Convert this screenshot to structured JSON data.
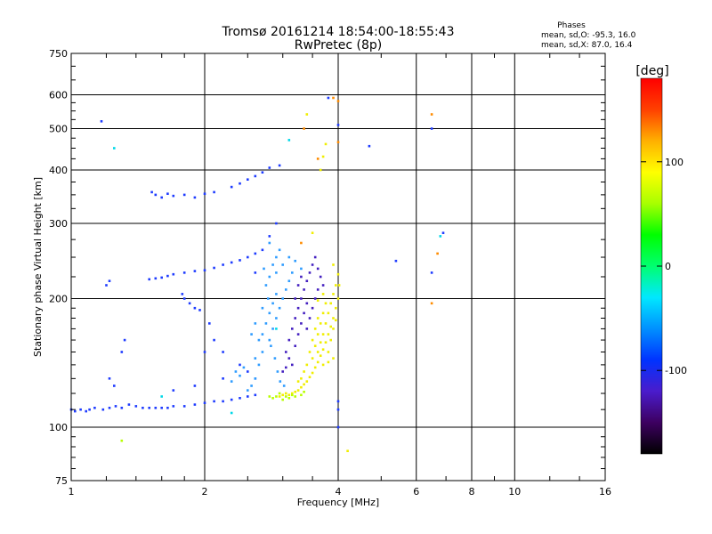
{
  "chart_data": {
    "type": "scatter",
    "title": "Tromsø 20161214 18:54:00-18:55:43",
    "subtitle": "RwPretec (8p)",
    "phases_box": {
      "heading": "Phases",
      "line_o": "mean, sd,O: -95.3, 16.0",
      "line_x": "mean, sd,X:  87.0, 16.4"
    },
    "xlabel": "Frequency [MHz]",
    "ylabel": "Stationary phase Virtual Height [km]",
    "xscale": "log",
    "yscale": "log",
    "xlim": [
      1,
      16
    ],
    "ylim": [
      75,
      750
    ],
    "x_ticks": [
      1,
      2,
      4,
      6,
      8,
      10,
      16
    ],
    "y_ticks": [
      75,
      100,
      200,
      300,
      400,
      500,
      600,
      750
    ],
    "x_grid": [
      2,
      4,
      6,
      8,
      10
    ],
    "y_grid": [
      100,
      200,
      300,
      400,
      500,
      600
    ],
    "grid": true,
    "colorbar": {
      "label": "[deg]",
      "range": [
        -180,
        180
      ],
      "ticks": [
        100,
        0,
        -100
      ],
      "colormap": [
        "#000000",
        "#3d0060",
        "#4a1ccc",
        "#0033ff",
        "#0090ff",
        "#00e8ff",
        "#00ff70",
        "#00ff00",
        "#a8ff00",
        "#ffff00",
        "#ffb000",
        "#ff4000",
        "#ff0000"
      ]
    },
    "series": [
      {
        "color": "#1f3cff",
        "points": [
          [
            1.0,
            110
          ],
          [
            1.02,
            109
          ],
          [
            1.05,
            110
          ],
          [
            1.08,
            109
          ],
          [
            1.1,
            110
          ],
          [
            1.13,
            111
          ],
          [
            1.18,
            110
          ],
          [
            1.22,
            111
          ],
          [
            1.26,
            112
          ],
          [
            1.3,
            111
          ],
          [
            1.35,
            113
          ],
          [
            1.4,
            112
          ],
          [
            1.45,
            111
          ],
          [
            1.5,
            111
          ],
          [
            1.55,
            111
          ],
          [
            1.6,
            111
          ],
          [
            1.65,
            111
          ],
          [
            1.7,
            112
          ],
          [
            1.8,
            112
          ],
          [
            1.9,
            113
          ],
          [
            2.0,
            114
          ],
          [
            2.1,
            115
          ],
          [
            2.2,
            115
          ],
          [
            2.3,
            116
          ],
          [
            2.4,
            117
          ],
          [
            2.5,
            118
          ],
          [
            2.6,
            119
          ],
          [
            1.5,
            222
          ],
          [
            1.55,
            223
          ],
          [
            1.6,
            224
          ],
          [
            1.65,
            226
          ],
          [
            1.7,
            228
          ],
          [
            1.8,
            230
          ],
          [
            1.9,
            232
          ],
          [
            2.0,
            233
          ],
          [
            2.1,
            236
          ],
          [
            2.2,
            240
          ],
          [
            2.3,
            243
          ],
          [
            2.4,
            246
          ],
          [
            2.5,
            250
          ],
          [
            2.6,
            255
          ],
          [
            2.7,
            260
          ],
          [
            1.52,
            355
          ],
          [
            1.55,
            350
          ],
          [
            1.6,
            345
          ],
          [
            1.65,
            352
          ],
          [
            1.7,
            348
          ],
          [
            1.8,
            350
          ],
          [
            1.9,
            345
          ],
          [
            2.0,
            352
          ],
          [
            2.1,
            355
          ],
          [
            2.3,
            365
          ],
          [
            2.4,
            372
          ],
          [
            2.5,
            380
          ],
          [
            2.6,
            387
          ],
          [
            2.7,
            395
          ],
          [
            2.8,
            405
          ],
          [
            2.95,
            410
          ],
          [
            1.78,
            205
          ],
          [
            1.8,
            200
          ],
          [
            1.85,
            195
          ],
          [
            1.9,
            190
          ],
          [
            1.95,
            188
          ],
          [
            1.2,
            215
          ],
          [
            1.22,
            220
          ],
          [
            1.3,
            150
          ],
          [
            1.32,
            160
          ],
          [
            1.22,
            130
          ],
          [
            1.25,
            125
          ],
          [
            1.17,
            520
          ],
          [
            3.8,
            590
          ],
          [
            4.0,
            510
          ],
          [
            6.5,
            500
          ],
          [
            6.5,
            230
          ],
          [
            2.9,
            300
          ],
          [
            2.8,
            280
          ],
          [
            2.6,
            230
          ],
          [
            2.1,
            160
          ],
          [
            2.2,
            150
          ],
          [
            2.4,
            140
          ],
          [
            2.5,
            135
          ],
          [
            2.6,
            130
          ],
          [
            2.2,
            130
          ],
          [
            2.0,
            150
          ],
          [
            4.0,
            115
          ],
          [
            4.0,
            110
          ],
          [
            4.0,
            100
          ],
          [
            4.7,
            455
          ],
          [
            5.4,
            245
          ],
          [
            6.9,
            285
          ],
          [
            2.05,
            175
          ],
          [
            1.7,
            122
          ],
          [
            1.9,
            125
          ]
        ]
      },
      {
        "color": "#2f9cff",
        "points": [
          [
            2.7,
            165
          ],
          [
            2.75,
            175
          ],
          [
            2.8,
            185
          ],
          [
            2.85,
            195
          ],
          [
            2.9,
            205
          ],
          [
            2.75,
            215
          ],
          [
            2.8,
            225
          ],
          [
            2.85,
            240
          ],
          [
            2.9,
            250
          ],
          [
            2.95,
            260
          ],
          [
            2.8,
            270
          ],
          [
            2.7,
            150
          ],
          [
            2.65,
            140
          ],
          [
            2.6,
            130
          ],
          [
            2.55,
            125
          ],
          [
            2.5,
            122
          ],
          [
            2.8,
            160
          ],
          [
            2.85,
            170
          ],
          [
            2.9,
            180
          ],
          [
            2.95,
            190
          ],
          [
            3.0,
            200
          ],
          [
            3.05,
            210
          ],
          [
            3.1,
            220
          ],
          [
            3.15,
            230
          ],
          [
            2.72,
            235
          ],
          [
            2.78,
            200
          ],
          [
            2.82,
            155
          ],
          [
            2.88,
            145
          ],
          [
            2.92,
            135
          ],
          [
            2.96,
            128
          ],
          [
            3.02,
            125
          ],
          [
            2.4,
            132
          ],
          [
            2.45,
            138
          ],
          [
            2.3,
            128
          ],
          [
            2.35,
            135
          ],
          [
            2.6,
            145
          ],
          [
            2.65,
            160
          ],
          [
            2.7,
            190
          ],
          [
            2.9,
            230
          ],
          [
            3.0,
            240
          ],
          [
            3.1,
            250
          ],
          [
            3.2,
            245
          ],
          [
            3.3,
            235
          ],
          [
            2.55,
            165
          ],
          [
            2.6,
            175
          ]
        ]
      },
      {
        "color": "#4420c0",
        "points": [
          [
            3.05,
            150
          ],
          [
            3.1,
            160
          ],
          [
            3.15,
            170
          ],
          [
            3.2,
            180
          ],
          [
            3.25,
            190
          ],
          [
            3.3,
            200
          ],
          [
            3.35,
            210
          ],
          [
            3.4,
            220
          ],
          [
            3.45,
            230
          ],
          [
            3.5,
            240
          ],
          [
            3.55,
            250
          ],
          [
            3.6,
            235
          ],
          [
            3.65,
            225
          ],
          [
            3.7,
            215
          ],
          [
            3.2,
            155
          ],
          [
            3.25,
            165
          ],
          [
            3.3,
            175
          ],
          [
            3.35,
            185
          ],
          [
            3.4,
            195
          ],
          [
            3.1,
            145
          ],
          [
            3.15,
            140
          ],
          [
            3.05,
            138
          ],
          [
            3.0,
            135
          ],
          [
            3.4,
            170
          ],
          [
            3.45,
            180
          ],
          [
            3.5,
            190
          ],
          [
            3.55,
            200
          ],
          [
            3.6,
            210
          ],
          [
            3.2,
            200
          ],
          [
            3.25,
            215
          ],
          [
            3.3,
            225
          ]
        ]
      },
      {
        "color": "#f0ee00",
        "points": [
          [
            2.95,
            118
          ],
          [
            3.0,
            119
          ],
          [
            3.05,
            120
          ],
          [
            3.1,
            119
          ],
          [
            3.15,
            120
          ],
          [
            3.2,
            121
          ],
          [
            3.25,
            122
          ],
          [
            3.3,
            124
          ],
          [
            3.35,
            126
          ],
          [
            3.4,
            128
          ],
          [
            3.45,
            131
          ],
          [
            3.5,
            134
          ],
          [
            3.55,
            138
          ],
          [
            3.6,
            142
          ],
          [
            3.65,
            147
          ],
          [
            3.7,
            152
          ],
          [
            3.75,
            158
          ],
          [
            3.8,
            165
          ],
          [
            3.85,
            172
          ],
          [
            3.9,
            180
          ],
          [
            3.95,
            190
          ],
          [
            4.0,
            200
          ],
          [
            4.02,
            215
          ],
          [
            4.0,
            228
          ],
          [
            3.9,
            240
          ],
          [
            3.6,
            150
          ],
          [
            3.65,
            158
          ],
          [
            3.7,
            165
          ],
          [
            3.75,
            175
          ],
          [
            3.8,
            185
          ],
          [
            3.85,
            195
          ],
          [
            3.9,
            205
          ],
          [
            3.95,
            215
          ],
          [
            3.5,
            145
          ],
          [
            3.55,
            155
          ],
          [
            3.6,
            165
          ],
          [
            3.65,
            175
          ],
          [
            3.7,
            185
          ],
          [
            3.4,
            140
          ],
          [
            3.45,
            150
          ],
          [
            3.5,
            160
          ],
          [
            3.35,
            135
          ],
          [
            3.3,
            130
          ],
          [
            3.25,
            128
          ],
          [
            3.8,
            150
          ],
          [
            3.85,
            160
          ],
          [
            3.9,
            170
          ],
          [
            3.95,
            178
          ],
          [
            3.6,
            198
          ],
          [
            3.7,
            205
          ],
          [
            3.75,
            195
          ],
          [
            3.55,
            170
          ],
          [
            3.6,
            180
          ],
          [
            3.7,
            140
          ],
          [
            3.8,
            142
          ],
          [
            3.9,
            145
          ],
          [
            3.65,
            400
          ],
          [
            3.7,
            430
          ],
          [
            3.75,
            460
          ],
          [
            3.4,
            540
          ],
          [
            3.5,
            285
          ],
          [
            4.2,
            88
          ]
        ]
      },
      {
        "color": "#b8ff00",
        "points": [
          [
            2.8,
            118
          ],
          [
            2.85,
            117
          ],
          [
            2.9,
            118
          ],
          [
            3.0,
            116
          ],
          [
            3.05,
            118
          ],
          [
            3.1,
            117
          ],
          [
            3.2,
            118
          ],
          [
            3.3,
            119
          ],
          [
            3.35,
            121
          ],
          [
            2.95,
            120
          ],
          [
            3.15,
            119
          ],
          [
            1.3,
            93
          ]
        ]
      },
      {
        "color": "#ff8c00",
        "points": [
          [
            3.9,
            590
          ],
          [
            4.0,
            580
          ],
          [
            6.5,
            540
          ],
          [
            4.0,
            465
          ],
          [
            3.35,
            500
          ],
          [
            3.6,
            425
          ],
          [
            6.7,
            255
          ],
          [
            6.5,
            195
          ],
          [
            3.3,
            270
          ]
        ]
      },
      {
        "color": "#00d8e8",
        "points": [
          [
            1.25,
            450
          ],
          [
            2.9,
            170
          ],
          [
            3.1,
            470
          ],
          [
            6.8,
            280
          ],
          [
            2.3,
            108
          ],
          [
            1.6,
            118
          ]
        ]
      }
    ]
  }
}
